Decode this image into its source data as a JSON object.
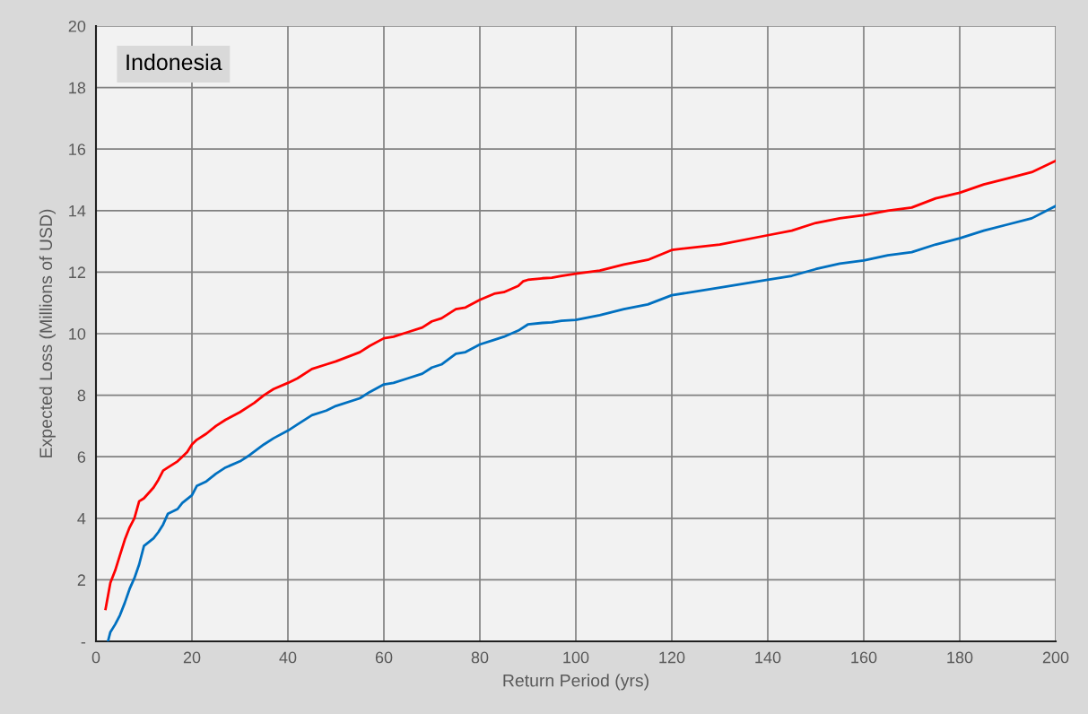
{
  "chart_data": {
    "type": "line",
    "title": "Indonesia",
    "xlabel": "Return Period (yrs)",
    "ylabel": "Expected Loss (Millions of USD)",
    "xlim": [
      0,
      200
    ],
    "xticks": [
      0,
      20,
      40,
      60,
      80,
      100,
      120,
      140,
      160,
      180,
      200
    ],
    "ylim": [
      0,
      20
    ],
    "yticks": [
      {
        "value": 0,
        "label": "-"
      },
      2,
      4,
      6,
      8,
      10,
      12,
      14,
      16,
      18,
      20
    ],
    "grid": true,
    "line_style": "solid",
    "series": [
      {
        "color": "#ff0000",
        "x": [
          2,
          3,
          4,
          5,
          6,
          7,
          8,
          9,
          10,
          12,
          13,
          14,
          15,
          17,
          19,
          20,
          21,
          23,
          25,
          27,
          30,
          33,
          35,
          37,
          40,
          42,
          45,
          48,
          50,
          55,
          57,
          60,
          62,
          65,
          68,
          70,
          72,
          75,
          77,
          80,
          83,
          85,
          88,
          89,
          90,
          93,
          95,
          97,
          100,
          105,
          110,
          115,
          120,
          130,
          140,
          145,
          150,
          155,
          160,
          165,
          170,
          175,
          180,
          185,
          190,
          195,
          200
        ],
        "values": [
          1.05,
          1.9,
          2.3,
          2.8,
          3.3,
          3.7,
          4.0,
          4.55,
          4.65,
          5.0,
          5.25,
          5.55,
          5.65,
          5.85,
          6.15,
          6.4,
          6.55,
          6.75,
          7.0,
          7.2,
          7.45,
          7.75,
          8.0,
          8.2,
          8.4,
          8.55,
          8.85,
          9.0,
          9.1,
          9.4,
          9.6,
          9.85,
          9.9,
          10.05,
          10.2,
          10.4,
          10.5,
          10.8,
          10.85,
          11.1,
          11.3,
          11.35,
          11.55,
          11.7,
          11.75,
          11.8,
          11.82,
          11.88,
          11.95,
          12.05,
          12.25,
          12.4,
          12.72,
          12.9,
          13.2,
          13.35,
          13.6,
          13.75,
          13.85,
          14.0,
          14.1,
          14.4,
          14.58,
          14.85,
          15.05,
          15.25,
          15.62
        ]
      },
      {
        "color": "#0070c0",
        "x": [
          2.5,
          3,
          4,
          5,
          6,
          7,
          8,
          9,
          10,
          12,
          13,
          14,
          15,
          17,
          18,
          20,
          21,
          23,
          25,
          27,
          30,
          32,
          35,
          37,
          40,
          42,
          45,
          48,
          50,
          55,
          57,
          60,
          62,
          65,
          68,
          70,
          72,
          75,
          77,
          80,
          83,
          85,
          88,
          90,
          93,
          95,
          97,
          100,
          105,
          110,
          115,
          120,
          130,
          140,
          145,
          150,
          155,
          160,
          165,
          170,
          175,
          180,
          185,
          190,
          195,
          200
        ],
        "values": [
          0,
          0.3,
          0.55,
          0.85,
          1.25,
          1.7,
          2.05,
          2.5,
          3.1,
          3.35,
          3.55,
          3.8,
          4.15,
          4.3,
          4.5,
          4.75,
          5.05,
          5.2,
          5.45,
          5.65,
          5.85,
          6.05,
          6.4,
          6.6,
          6.85,
          7.05,
          7.35,
          7.5,
          7.65,
          7.9,
          8.1,
          8.35,
          8.4,
          8.55,
          8.7,
          8.9,
          9.0,
          9.35,
          9.4,
          9.65,
          9.8,
          9.9,
          10.1,
          10.3,
          10.35,
          10.37,
          10.42,
          10.45,
          10.6,
          10.8,
          10.95,
          11.25,
          11.5,
          11.75,
          11.88,
          12.1,
          12.28,
          12.38,
          12.55,
          12.65,
          12.9,
          13.1,
          13.35,
          13.55,
          13.75,
          14.15
        ]
      }
    ]
  }
}
